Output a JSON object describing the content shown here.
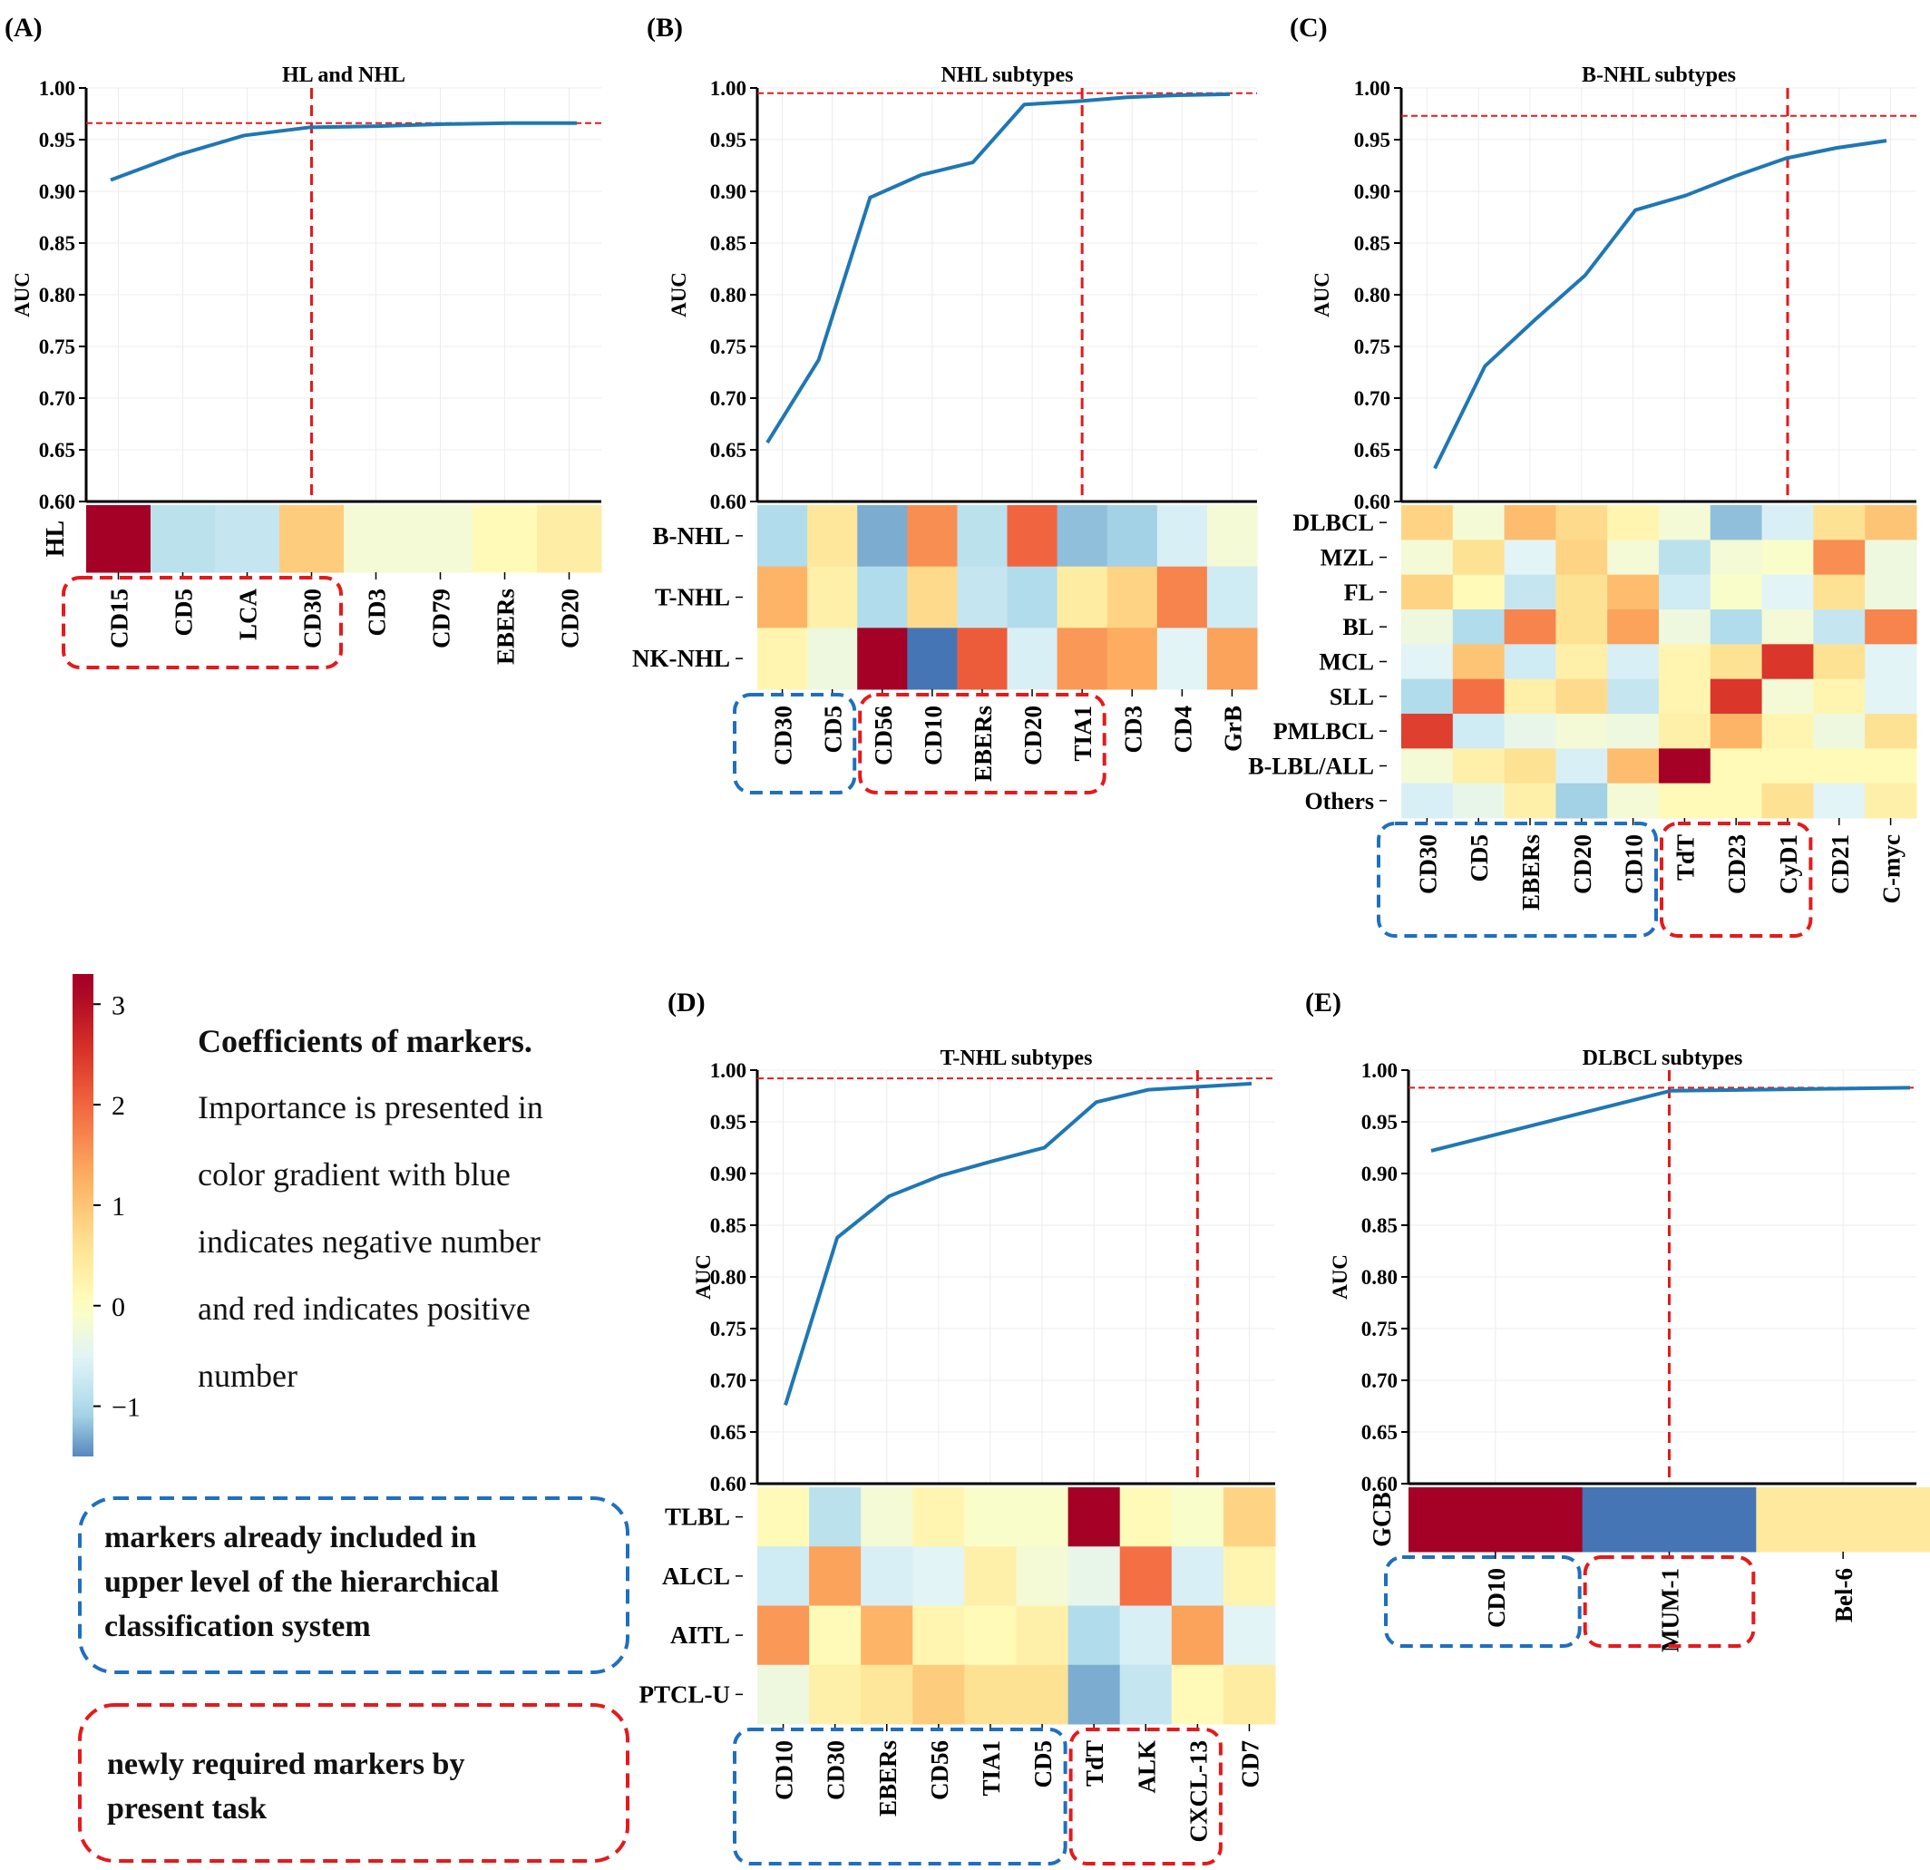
{
  "panels": [
    {
      "letter": "(A)",
      "chart_data": {
        "type": "line",
        "title": "HL and NHL",
        "ylabel": "AUC",
        "ylim": [
          0.6,
          1.0
        ],
        "yticks": [
          "0.60",
          "0.65",
          "0.70",
          "0.75",
          "0.80",
          "0.85",
          "0.90",
          "0.95",
          "1.00"
        ],
        "x": [
          "CD15",
          "CD5",
          "LCA",
          "CD30",
          "CD3",
          "CD79",
          "EBERs",
          "CD20"
        ],
        "values": [
          0.911,
          0.935,
          0.954,
          0.962,
          0.963,
          0.965,
          0.966,
          0.966
        ],
        "threshold_auc": 0.966,
        "selected_marker": "CD30",
        "heatmap": {
          "rows": [
            "HL"
          ],
          "cols": [
            "CD15",
            "CD5",
            "LCA",
            "CD30",
            "CD3",
            "CD79",
            "EBERs",
            "CD20"
          ],
          "values": [
            [
              3.2,
              -0.9,
              -0.8,
              0.9,
              -0.2,
              -0.2,
              0.1,
              0.35
            ]
          ]
        }
      },
      "brackets": [
        {
          "kind": "new",
          "from": 0,
          "to": 3
        }
      ]
    },
    {
      "letter": "(B)",
      "chart_data": {
        "type": "line",
        "title": "NHL subtypes",
        "ylabel": "AUC",
        "ylim": [
          0.6,
          1.0
        ],
        "yticks": [
          "0.60",
          "0.65",
          "0.70",
          "0.75",
          "0.80",
          "0.85",
          "0.90",
          "0.95",
          "1.00"
        ],
        "x": [
          "CD30",
          "CD5",
          "CD56",
          "CD10",
          "EBERs",
          "CD20",
          "TIA1",
          "CD3",
          "CD4",
          "GrB"
        ],
        "values": [
          0.657,
          0.737,
          0.894,
          0.916,
          0.928,
          0.984,
          0.987,
          0.991,
          0.993,
          0.994
        ],
        "threshold_auc": 0.995,
        "selected_marker": "TIA1",
        "heatmap": {
          "rows": [
            "B-NHL",
            "T-NHL",
            "NK-NHL"
          ],
          "cols": [
            "CD30",
            "CD5",
            "CD56",
            "CD10",
            "EBERs",
            "CD20",
            "TIA1",
            "CD3",
            "CD4",
            "GrB"
          ],
          "values": [
            [
              -1.0,
              0.5,
              -1.3,
              1.6,
              -0.9,
              2.0,
              -1.2,
              -1.1,
              -0.6,
              -0.2
            ],
            [
              1.2,
              0.3,
              -1.0,
              0.7,
              -0.8,
              -1.0,
              0.4,
              0.8,
              1.7,
              -0.7
            ],
            [
              0.2,
              -0.3,
              3.2,
              -1.6,
              2.1,
              -0.6,
              1.5,
              1.3,
              -0.5,
              1.4
            ]
          ]
        }
      },
      "brackets": [
        {
          "kind": "upper",
          "from": 0,
          "to": 1
        },
        {
          "kind": "new",
          "from": 2,
          "to": 6
        }
      ]
    },
    {
      "letter": "(C)",
      "chart_data": {
        "type": "line",
        "title": "B-NHL subtypes",
        "ylabel": "AUC",
        "ylim": [
          0.6,
          1.0
        ],
        "yticks": [
          "0.60",
          "0.65",
          "0.70",
          "0.75",
          "0.80",
          "0.85",
          "0.90",
          "0.95",
          "1.00"
        ],
        "x": [
          "CD30",
          "CD5",
          "EBERs",
          "CD20",
          "CD10",
          "TdT",
          "CD23",
          "CyD1",
          "CD21",
          "C-myc"
        ],
        "values": [
          0.632,
          0.731,
          0.776,
          0.819,
          0.882,
          0.896,
          0.915,
          0.932,
          0.942,
          0.949
        ],
        "threshold_auc": 0.973,
        "selected_marker": "CyD1",
        "heatmap": {
          "rows": [
            "DLBCL",
            "MZL",
            "FL",
            "BL",
            "MCL",
            "SLL",
            "PMLBCL",
            "B-LBL/ALL",
            "Others"
          ],
          "cols": [
            "CD30",
            "CD5",
            "EBERs",
            "CD20",
            "CD10",
            "TdT",
            "CD23",
            "CyD1",
            "CD21",
            "C-myc"
          ],
          "values": [
            [
              0.8,
              -0.2,
              1.1,
              0.7,
              0.2,
              -0.2,
              -1.2,
              -0.6,
              0.6,
              1.0
            ],
            [
              -0.2,
              0.6,
              -0.5,
              0.8,
              -0.2,
              -0.9,
              -0.2,
              -0.1,
              1.6,
              -0.3
            ],
            [
              0.8,
              0.1,
              -0.8,
              0.6,
              1.1,
              -0.7,
              -0.1,
              -0.5,
              0.6,
              -0.3
            ],
            [
              -0.3,
              -1.0,
              1.7,
              0.6,
              1.4,
              -0.3,
              -1.0,
              -0.2,
              -0.8,
              1.7
            ],
            [
              -0.5,
              1.0,
              -0.7,
              0.3,
              -0.6,
              0.2,
              0.6,
              2.5,
              0.6,
              -0.5
            ],
            [
              -1.0,
              1.9,
              0.3,
              0.7,
              -0.8,
              0.2,
              2.5,
              -0.2,
              0.2,
              -0.5
            ],
            [
              2.4,
              -0.7,
              -0.4,
              -0.2,
              -0.3,
              0.3,
              1.2,
              0.2,
              -0.3,
              0.6
            ],
            [
              -0.2,
              0.3,
              0.6,
              -0.6,
              1.1,
              3.2,
              0.1,
              0.1,
              0.1,
              0.1
            ],
            [
              -0.6,
              -0.4,
              0.3,
              -1.1,
              -0.2,
              0.1,
              0.1,
              0.6,
              -0.5,
              0.3
            ]
          ]
        }
      },
      "brackets": [
        {
          "kind": "upper",
          "from": 0,
          "to": 4
        },
        {
          "kind": "new",
          "from": 5,
          "to": 7
        }
      ]
    },
    {
      "letter": "(D)",
      "chart_data": {
        "type": "line",
        "title": "T-NHL subtypes",
        "ylabel": "AUC",
        "ylim": [
          0.6,
          1.0
        ],
        "yticks": [
          "0.60",
          "0.65",
          "0.70",
          "0.75",
          "0.80",
          "0.85",
          "0.90",
          "0.95",
          "1.00"
        ],
        "x": [
          "CD10",
          "CD30",
          "EBERs",
          "CD56",
          "TIA1",
          "CD5",
          "TdT",
          "ALK",
          "CXCL-13",
          "CD7"
        ],
        "values": [
          0.676,
          0.838,
          0.878,
          0.898,
          0.912,
          0.925,
          0.969,
          0.981,
          0.984,
          0.987
        ],
        "threshold_auc": 0.992,
        "selected_marker": "CXCL-13",
        "heatmap": {
          "rows": [
            "TLBL",
            "ALCL",
            "AITL",
            "PTCL-U"
          ],
          "cols": [
            "CD10",
            "CD30",
            "EBERs",
            "CD56",
            "TIA1",
            "CD5",
            "TdT",
            "ALK",
            "CXCL-13",
            "CD7"
          ],
          "values": [
            [
              0.1,
              -0.9,
              -0.2,
              0.2,
              -0.1,
              -0.1,
              3.2,
              0.1,
              -0.1,
              0.8
            ],
            [
              -0.7,
              1.4,
              -0.6,
              -0.5,
              0.3,
              -0.2,
              -0.4,
              1.9,
              -0.6,
              0.2
            ],
            [
              1.5,
              0.1,
              1.2,
              0.2,
              0.1,
              0.3,
              -1.0,
              -0.6,
              1.4,
              -0.5
            ],
            [
              -0.3,
              0.3,
              0.5,
              0.9,
              0.6,
              0.6,
              -1.3,
              -0.8,
              0.1,
              0.4
            ]
          ]
        }
      },
      "brackets": [
        {
          "kind": "upper",
          "from": 0,
          "to": 5
        },
        {
          "kind": "new",
          "from": 6,
          "to": 8
        }
      ]
    },
    {
      "letter": "(E)",
      "chart_data": {
        "type": "line",
        "title": "DLBCL subtypes",
        "ylabel": "AUC",
        "ylim": [
          0.6,
          1.0
        ],
        "yticks": [
          "0.60",
          "0.65",
          "0.70",
          "0.75",
          "0.80",
          "0.85",
          "0.90",
          "0.95",
          "1.00"
        ],
        "x": [
          "CD10",
          "MUM-1",
          "Bel-6"
        ],
        "values": [
          0.922,
          0.98,
          0.983
        ],
        "threshold_auc": 0.983,
        "selected_marker": "MUM-1",
        "heatmap": {
          "rows": [
            "GCB"
          ],
          "cols": [
            "CD10",
            "MUM-1",
            "Bel-6"
          ],
          "values": [
            [
              3.2,
              -1.6,
              0.45
            ]
          ]
        }
      },
      "brackets": [
        {
          "kind": "upper",
          "from": 0,
          "to": 0
        },
        {
          "kind": "new",
          "from": 1,
          "to": 1
        }
      ]
    }
  ],
  "colorbar": {
    "vmin": -1.5,
    "vmax": 3.3,
    "ticks": [
      "3",
      "2",
      "1",
      "0",
      "−1"
    ],
    "tick_values": [
      3,
      2,
      1,
      0,
      -1
    ]
  },
  "legend": {
    "title": "Coefficients of markers.",
    "lines": [
      "Importance is presented in",
      "color gradient with blue",
      "indicates negative number",
      "and red indicates positive",
      "number"
    ],
    "upper_box_lines": [
      "markers already included in",
      "upper level of the hierarchical",
      "classification system"
    ],
    "new_box_lines": [
      "newly required markers by",
      "present task"
    ]
  },
  "colors": {
    "line": "#1f77b4",
    "threshold": "#e41a1c",
    "upper_bracket": "#1f6fbf",
    "new_bracket": "#e41a1c"
  }
}
